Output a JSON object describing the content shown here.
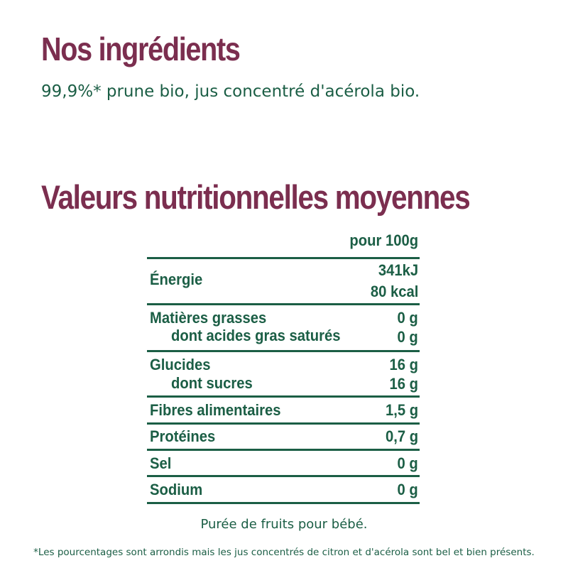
{
  "ingredients": {
    "title": "Nos ingrédients",
    "text": "99,9%* prune bio, jus concentré d'acérola bio."
  },
  "nutrition": {
    "title": "Valeurs nutritionnelles moyennes",
    "column_header": "pour 100g",
    "rows": [
      {
        "label": "Énergie",
        "value": "341kJ",
        "value2": "80 kcal"
      },
      {
        "label": "Matières grasses",
        "value": "0 g",
        "sub_label": "dont acides gras saturés",
        "sub_value": "0 g"
      },
      {
        "label": "Glucides",
        "value": "16 g",
        "sub_label": "dont sucres",
        "sub_value": "16 g"
      },
      {
        "label": "Fibres alimentaires",
        "value": "1,5 g"
      },
      {
        "label": "Protéines",
        "value": "0,7 g"
      },
      {
        "label": "Sel",
        "value": "0 g"
      },
      {
        "label": "Sodium",
        "value": "0 g"
      }
    ]
  },
  "footer": {
    "description": "Purée de fruits pour bébé.",
    "footnote": "*Les pourcentages sont arrondis mais les jus concentrés de citron et d'acérola sont bel et bien présents."
  },
  "colors": {
    "title": "#7b2e4f",
    "text": "#1b5e45",
    "background": "#ffffff"
  }
}
